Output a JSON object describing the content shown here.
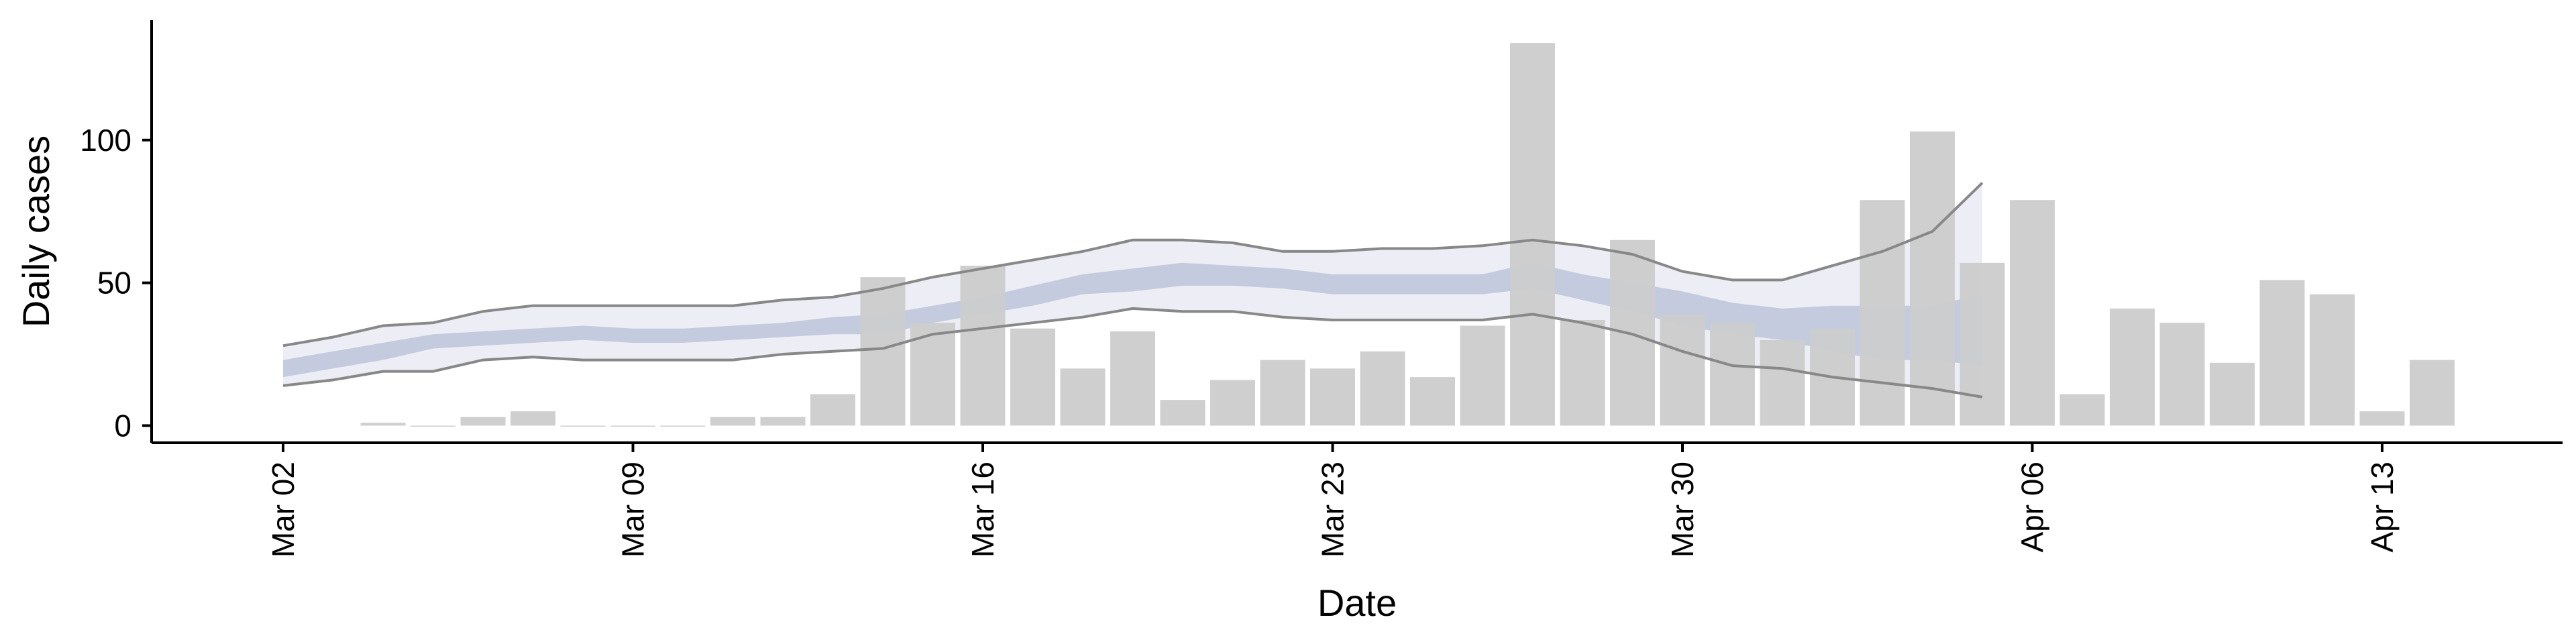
{
  "chart_data": {
    "type": "bar",
    "xlabel": "Date",
    "ylabel": "Daily cases",
    "ylim": [
      -6,
      142
    ],
    "yticks": [
      0,
      50,
      100
    ],
    "start_date": "2020-03-02",
    "x_tick_labels": [
      {
        "date": "2020-03-02",
        "label": "Mar 02"
      },
      {
        "date": "2020-03-09",
        "label": "Mar 09"
      },
      {
        "date": "2020-03-16",
        "label": "Mar 16"
      },
      {
        "date": "2020-03-23",
        "label": "Mar 23"
      },
      {
        "date": "2020-03-30",
        "label": "Mar 30"
      },
      {
        "date": "2020-04-06",
        "label": "Apr 06"
      },
      {
        "date": "2020-04-13",
        "label": "Apr 13"
      }
    ],
    "bars": {
      "dates": [
        "2020-03-04",
        "2020-03-05",
        "2020-03-06",
        "2020-03-07",
        "2020-03-08",
        "2020-03-09",
        "2020-03-10",
        "2020-03-11",
        "2020-03-12",
        "2020-03-13",
        "2020-03-14",
        "2020-03-15",
        "2020-03-16",
        "2020-03-17",
        "2020-03-18",
        "2020-03-19",
        "2020-03-20",
        "2020-03-21",
        "2020-03-22",
        "2020-03-23",
        "2020-03-24",
        "2020-03-25",
        "2020-03-26",
        "2020-03-27",
        "2020-03-28",
        "2020-03-29",
        "2020-03-30",
        "2020-03-31",
        "2020-04-01",
        "2020-04-02",
        "2020-04-03",
        "2020-04-04",
        "2020-04-05",
        "2020-04-06",
        "2020-04-07",
        "2020-04-08",
        "2020-04-09",
        "2020-04-10",
        "2020-04-11",
        "2020-04-12",
        "2020-04-13",
        "2020-04-14"
      ],
      "values": [
        1,
        0,
        3,
        5,
        0,
        0,
        0,
        3,
        3,
        11,
        52,
        36,
        56,
        34,
        20,
        33,
        9,
        16,
        23,
        20,
        26,
        17,
        35,
        134,
        37,
        65,
        39,
        36,
        30,
        34,
        79,
        103,
        57,
        79,
        11,
        41,
        36,
        22,
        51,
        46,
        5,
        23
      ],
      "color": "#cccccc"
    },
    "estimate": {
      "dates": [
        "2020-03-02",
        "2020-03-03",
        "2020-03-04",
        "2020-03-05",
        "2020-03-06",
        "2020-03-07",
        "2020-03-08",
        "2020-03-09",
        "2020-03-10",
        "2020-03-11",
        "2020-03-12",
        "2020-03-13",
        "2020-03-14",
        "2020-03-15",
        "2020-03-16",
        "2020-03-17",
        "2020-03-18",
        "2020-03-19",
        "2020-03-20",
        "2020-03-21",
        "2020-03-22",
        "2020-03-23",
        "2020-03-24",
        "2020-03-25",
        "2020-03-26",
        "2020-03-27",
        "2020-03-28",
        "2020-03-29",
        "2020-03-30",
        "2020-03-31",
        "2020-04-01",
        "2020-04-02",
        "2020-04-03",
        "2020-04-04",
        "2020-04-05"
      ],
      "outer_lower": [
        14,
        16,
        19,
        19,
        23,
        24,
        23,
        23,
        23,
        23,
        25,
        26,
        27,
        32,
        34,
        36,
        38,
        41,
        40,
        40,
        38,
        37,
        37,
        37,
        37,
        39,
        36,
        32,
        26,
        21,
        20,
        17,
        15,
        13,
        10
      ],
      "outer_upper": [
        28,
        31,
        35,
        36,
        40,
        42,
        42,
        42,
        42,
        42,
        44,
        45,
        48,
        52,
        55,
        58,
        61,
        65,
        65,
        64,
        61,
        61,
        62,
        62,
        63,
        65,
        63,
        60,
        54,
        51,
        51,
        56,
        61,
        68,
        85
      ],
      "inner_lower": [
        17,
        20,
        23,
        27,
        28,
        29,
        30,
        29,
        29,
        30,
        31,
        32,
        32,
        36,
        39,
        42,
        46,
        47,
        49,
        49,
        48,
        46,
        46,
        46,
        46,
        48,
        44,
        40,
        35,
        32,
        30,
        26,
        23,
        23,
        21
      ],
      "inner_upper": [
        23,
        26,
        29,
        32,
        33,
        34,
        35,
        34,
        34,
        35,
        36,
        38,
        39,
        42,
        45,
        49,
        53,
        55,
        57,
        56,
        55,
        53,
        53,
        53,
        53,
        57,
        53,
        50,
        47,
        43,
        41,
        42,
        42,
        42,
        46
      ],
      "outer_band_color": "#dfe1ee",
      "inner_band_color": "#b8bfd6",
      "bound_line_color": "#888888"
    }
  }
}
